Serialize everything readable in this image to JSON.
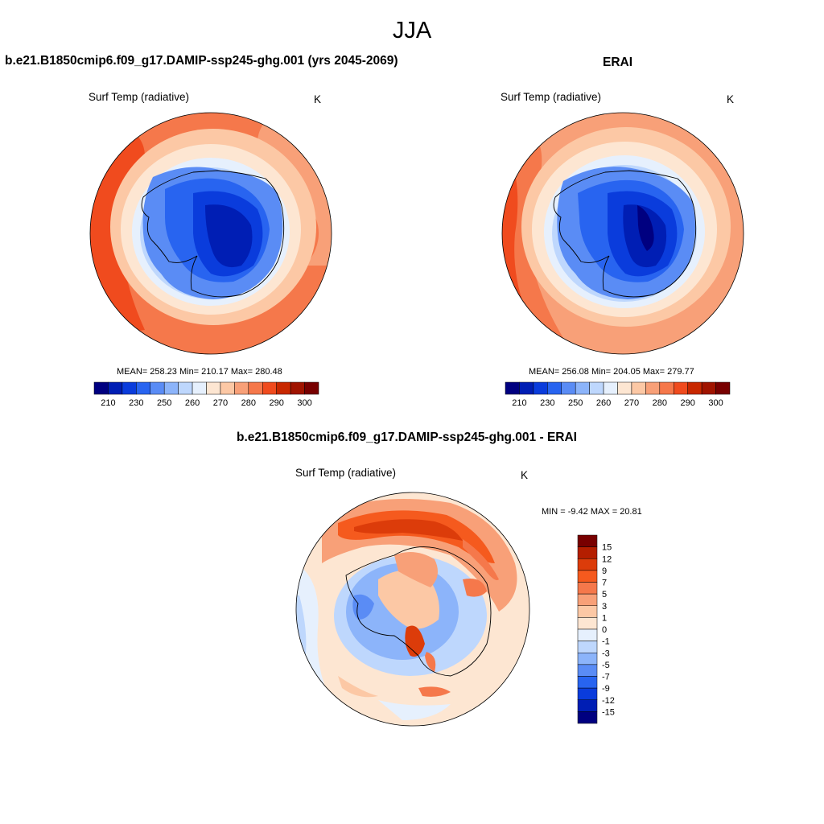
{
  "figure": {
    "title": "JJA"
  },
  "panels": [
    {
      "title": "b.e21.B1850cmip6.f09_g17.DAMIP-ssp245-ghg.001 (yrs 2045-2069)",
      "variable": "Surf Temp (radiative)",
      "units": "K",
      "stats": "MEAN= 258.23  Min= 210.17  Max= 280.48",
      "colorbar_labels": [
        "210",
        "230",
        "250",
        "260",
        "270",
        "280",
        "290",
        "300"
      ]
    },
    {
      "title": "ERAI",
      "variable": "Surf Temp (radiative)",
      "units": "K",
      "stats": "MEAN= 256.08  Min= 204.05  Max= 279.77",
      "colorbar_labels": [
        "210",
        "230",
        "250",
        "260",
        "270",
        "280",
        "290",
        "300"
      ]
    },
    {
      "title": "b.e21.B1850cmip6.f09_g17.DAMIP-ssp245-ghg.001 - ERAI",
      "variable": "Surf Temp (radiative)",
      "units": "K",
      "stats": "MIN =  -9.42 MAX =  20.81",
      "colorbar_labels": [
        "15",
        "12",
        "9",
        "7",
        "5",
        "3",
        "1",
        "0",
        "-1",
        "-3",
        "-5",
        "-7",
        "-9",
        "-12",
        "-15"
      ]
    }
  ],
  "colors": {
    "abs_scale": [
      "#000080",
      "#001eb4",
      "#0a3cdc",
      "#2864f0",
      "#5a8cf5",
      "#8cb4fa",
      "#bed7fd",
      "#e6f0fd",
      "#fde6d2",
      "#fcc8a5",
      "#f8a078",
      "#f5784b",
      "#f04b1e",
      "#c82800",
      "#a01400",
      "#780000"
    ],
    "diff_scale": [
      "#780000",
      "#b41e00",
      "#dc3c0a",
      "#f55a1e",
      "#f5784b",
      "#f8a078",
      "#fcc8a5",
      "#fde6d2",
      "#e6f0fd",
      "#bed7fd",
      "#8cb4fa",
      "#5a8cf5",
      "#2864f0",
      "#0a3cdc",
      "#001eb4",
      "#000080"
    ]
  }
}
